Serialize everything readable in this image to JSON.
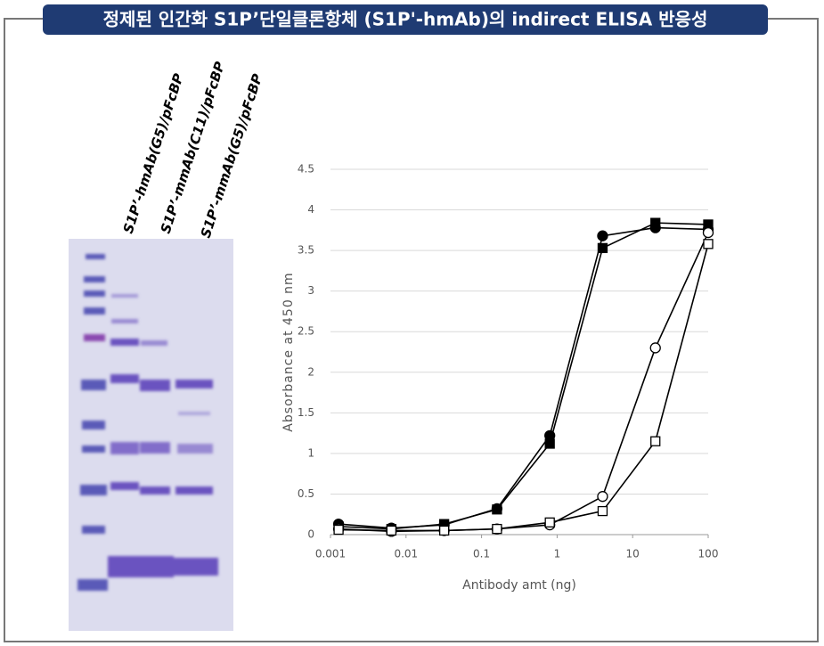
{
  "title": "정제된 인간화 S1P’단일클론항체 (S1P'-hmAb)의 indirect ELISA 반응성",
  "gel": {
    "lanes": [
      "S1P’-hmAb(G5)/pFcBP",
      "S1P’-mmAb(C11)/pFcBP",
      "S1P’-mmAb(G5)/pFcBP"
    ]
  },
  "chart_data": {
    "type": "line",
    "x": [
      0.00128,
      0.0064,
      0.032,
      0.16,
      0.8,
      4,
      20,
      100
    ],
    "xscale": "log",
    "xlim": [
      0.001,
      100
    ],
    "xticks": [
      0.001,
      0.01,
      0.1,
      1,
      10,
      100
    ],
    "ylim": [
      0,
      4.5
    ],
    "yticks": [
      0,
      0.5,
      1,
      1.5,
      2,
      2.5,
      3,
      3.5,
      4,
      4.5
    ],
    "xlabel": "Antibody amt (ng)",
    "ylabel": "Absorbance at 450 nm",
    "grid": true,
    "series": [
      {
        "color": "#000000",
        "marker": "circle",
        "marker_fill": "#000000",
        "values": [
          0.13,
          0.08,
          0.12,
          0.32,
          1.22,
          3.68,
          3.78,
          3.76
        ]
      },
      {
        "color": "#000000",
        "marker": "square",
        "marker_fill": "#000000",
        "values": [
          0.1,
          0.07,
          0.13,
          0.31,
          1.12,
          3.53,
          3.84,
          3.82
        ]
      },
      {
        "color": "#000000",
        "marker": "circle",
        "marker_fill": "#ffffff",
        "values": [
          0.07,
          0.04,
          0.05,
          0.07,
          0.12,
          0.47,
          2.3,
          3.72
        ]
      },
      {
        "color": "#000000",
        "marker": "square",
        "marker_fill": "#ffffff",
        "values": [
          0.06,
          0.05,
          0.05,
          0.07,
          0.15,
          0.29,
          1.15,
          3.58
        ]
      }
    ]
  }
}
